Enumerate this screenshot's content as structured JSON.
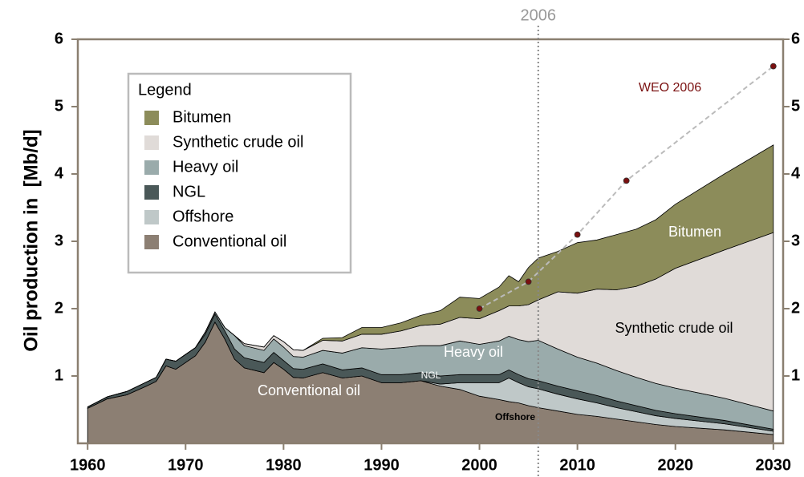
{
  "chart_data": {
    "type": "stacked_area",
    "ylabel": "Oil production in  [Mb/d]",
    "legend_title": "Legend",
    "legend": "upper left",
    "x": [
      1960,
      1962,
      1964,
      1966,
      1967,
      1968,
      1969,
      1970,
      1971,
      1972,
      1973,
      1974,
      1975,
      1976,
      1978,
      1979,
      1980,
      1981,
      1982,
      1984,
      1986,
      1988,
      1990,
      1992,
      1994,
      1996,
      1998,
      2000,
      2002,
      2003,
      2004,
      2005,
      2006,
      2008,
      2010,
      2012,
      2014,
      2016,
      2018,
      2020,
      2025,
      2030
    ],
    "xlim": [
      1959,
      2031
    ],
    "xticks": [
      1960,
      1970,
      1980,
      1990,
      2000,
      2010,
      2020,
      2030
    ],
    "ylim": [
      0,
      6
    ],
    "yticks": [
      1,
      2,
      3,
      4,
      5,
      6
    ],
    "series": [
      {
        "name": "Conventional oil",
        "color": "#8c7f73",
        "values": [
          0.52,
          0.66,
          0.72,
          0.85,
          0.92,
          1.15,
          1.1,
          1.2,
          1.3,
          1.5,
          1.8,
          1.55,
          1.25,
          1.12,
          1.05,
          1.2,
          1.1,
          0.98,
          0.97,
          1.05,
          0.97,
          1.0,
          0.9,
          0.9,
          0.93,
          0.85,
          0.8,
          0.7,
          0.65,
          0.62,
          0.6,
          0.56,
          0.53,
          0.48,
          0.43,
          0.4,
          0.36,
          0.32,
          0.28,
          0.25,
          0.2,
          0.13
        ]
      },
      {
        "name": "Offshore",
        "color": "#bfc8c8",
        "values": [
          0,
          0,
          0,
          0,
          0,
          0,
          0,
          0,
          0,
          0,
          0,
          0,
          0,
          0,
          0,
          0,
          0,
          0,
          0,
          0,
          0,
          0,
          0,
          0,
          0,
          0.03,
          0.1,
          0.2,
          0.25,
          0.35,
          0.3,
          0.28,
          0.28,
          0.25,
          0.23,
          0.2,
          0.17,
          0.15,
          0.13,
          0.12,
          0.09,
          0.05
        ]
      },
      {
        "name": "NGL",
        "color": "#4a5858",
        "values": [
          0.02,
          0.03,
          0.05,
          0.06,
          0.06,
          0.1,
          0.12,
          0.12,
          0.12,
          0.12,
          0.12,
          0.12,
          0.15,
          0.15,
          0.15,
          0.15,
          0.13,
          0.13,
          0.13,
          0.13,
          0.12,
          0.12,
          0.12,
          0.12,
          0.12,
          0.12,
          0.12,
          0.12,
          0.12,
          0.12,
          0.12,
          0.12,
          0.12,
          0.12,
          0.12,
          0.11,
          0.1,
          0.09,
          0.08,
          0.07,
          0.05,
          0.03
        ]
      },
      {
        "name": "Heavy oil",
        "color": "#9aabab",
        "values": [
          0,
          0,
          0,
          0,
          0,
          0,
          0,
          0,
          0,
          0.03,
          0.03,
          0.05,
          0.2,
          0.18,
          0.18,
          0.2,
          0.2,
          0.18,
          0.18,
          0.2,
          0.25,
          0.3,
          0.38,
          0.4,
          0.4,
          0.45,
          0.5,
          0.45,
          0.5,
          0.5,
          0.52,
          0.55,
          0.6,
          0.55,
          0.5,
          0.48,
          0.45,
          0.42,
          0.4,
          0.38,
          0.33,
          0.27
        ]
      },
      {
        "name": "Synthetic crude oil",
        "color": "#e0dbd8",
        "values": [
          0,
          0,
          0,
          0,
          0,
          0,
          0,
          0,
          0,
          0,
          0,
          0,
          0,
          0.03,
          0.05,
          0.05,
          0.08,
          0.1,
          0.1,
          0.15,
          0.18,
          0.2,
          0.22,
          0.25,
          0.3,
          0.32,
          0.35,
          0.38,
          0.45,
          0.45,
          0.5,
          0.55,
          0.6,
          0.85,
          0.95,
          1.1,
          1.2,
          1.35,
          1.55,
          1.78,
          2.2,
          2.65
        ]
      },
      {
        "name": "Bitumen",
        "color": "#8c8c5a",
        "values": [
          0,
          0,
          0,
          0,
          0,
          0,
          0,
          0,
          0,
          0,
          0,
          0,
          0,
          0,
          0,
          0,
          0,
          0,
          0,
          0.03,
          0.05,
          0.1,
          0.1,
          0.12,
          0.15,
          0.2,
          0.3,
          0.3,
          0.35,
          0.45,
          0.36,
          0.55,
          0.62,
          0.6,
          0.75,
          0.73,
          0.82,
          0.85,
          0.88,
          0.95,
          1.13,
          1.3
        ]
      }
    ],
    "weo": {
      "name": "WEO 2006",
      "color": "#7a1010",
      "x": [
        2000,
        2005,
        2010,
        2015,
        2030
      ],
      "values": [
        2.0,
        2.4,
        3.1,
        3.9,
        5.6
      ]
    },
    "vline": {
      "x": 2006,
      "label": "2006"
    }
  }
}
